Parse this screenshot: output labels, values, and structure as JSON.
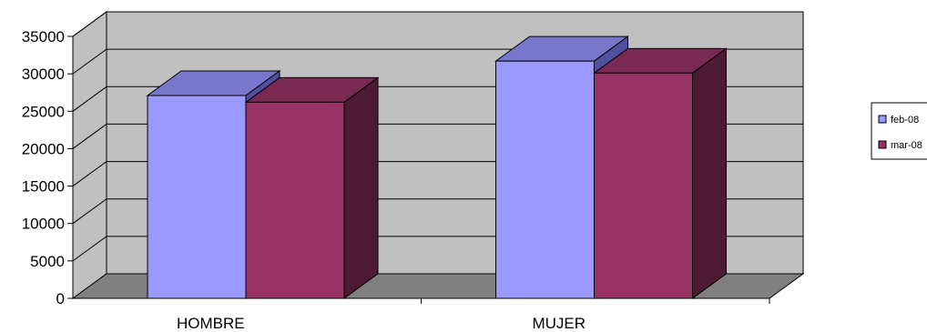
{
  "chart_data": {
    "type": "bar",
    "title": "",
    "xlabel": "",
    "ylabel": "",
    "categories": [
      "HOMBRE",
      "MUJER"
    ],
    "series": [
      {
        "name": "feb-08",
        "values": [
          27100,
          31700
        ]
      },
      {
        "name": "mar-08",
        "values": [
          26200,
          30100
        ]
      }
    ],
    "ylim": [
      0,
      35000
    ],
    "yticks": [
      0,
      5000,
      10000,
      15000,
      20000,
      25000,
      30000,
      35000
    ],
    "grid": true,
    "legend_position": "right",
    "colors": {
      "series": [
        "#9999ff",
        "#993366"
      ],
      "series_top": [
        "#7777cc",
        "#7a2952"
      ],
      "series_side": [
        "#5050a0",
        "#4d1a33"
      ],
      "wall": "#c0c0c0",
      "floor": "#808080"
    }
  }
}
